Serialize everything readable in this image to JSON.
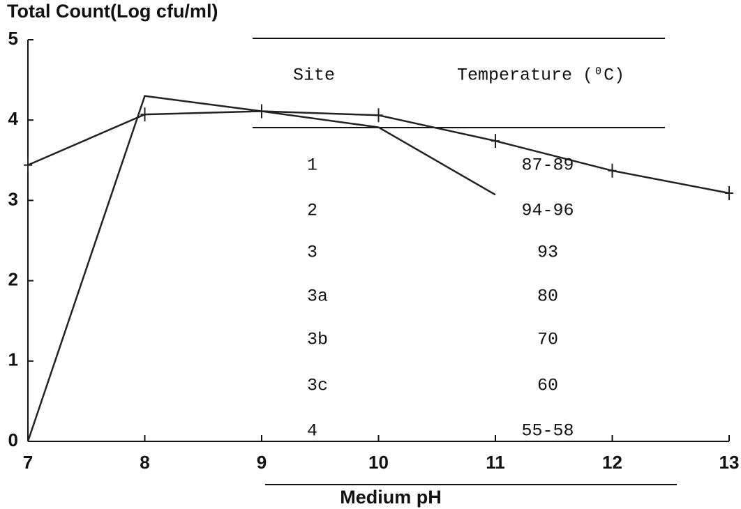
{
  "chart_data": {
    "type": "line",
    "ylabel": "Total Count(Log  cfu/ml)",
    "xlabel": "Medium pH",
    "x": [
      7,
      8,
      9,
      10,
      11,
      12,
      13
    ],
    "series": [
      {
        "color": "#222222",
        "markers": true,
        "values": [
          3.44,
          4.07,
          4.11,
          4.06,
          3.74,
          3.37,
          3.09
        ]
      },
      {
        "color": "#222222",
        "markers": false,
        "values": [
          0,
          4.3,
          4.11,
          3.91,
          3.07,
          null,
          null
        ]
      }
    ],
    "xlim": [
      7,
      13
    ],
    "xticks": [
      7,
      8,
      9,
      10,
      11,
      12,
      13
    ],
    "ylim": [
      0,
      5
    ],
    "yticks": [
      0,
      1,
      2,
      3,
      4,
      5
    ]
  },
  "table": {
    "columns": [
      "Site",
      "Temperature (⁰C)"
    ],
    "rows": [
      [
        "1",
        "87-89"
      ],
      [
        "2",
        "94-96"
      ],
      [
        "3",
        "93"
      ],
      [
        "3a",
        "80"
      ],
      [
        "3b",
        "70"
      ],
      [
        "3c",
        "60"
      ],
      [
        "4",
        "55-58"
      ]
    ]
  }
}
